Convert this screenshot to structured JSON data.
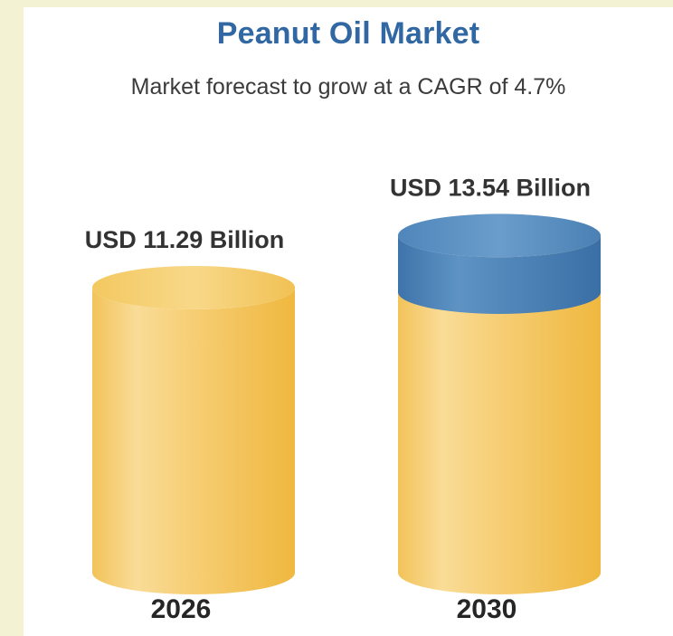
{
  "title": "Peanut Oil Market",
  "subtitle": "Market forecast to grow at a CAGR of 4.7%",
  "colors": {
    "background": "#f3f2d3",
    "title": "#3168a4",
    "cylinder_body": "#f4c55c",
    "cylinder_top": "#f5cd6e",
    "growth_segment": "#4a80b4"
  },
  "chart_data": {
    "type": "bar",
    "style": "3d-cylinder",
    "title": "Peanut Oil Market",
    "subtitle": "Market forecast to grow at a CAGR of 4.7%",
    "categories": [
      "2026",
      "2030"
    ],
    "values": [
      11.29,
      13.54
    ],
    "value_labels": [
      "USD 11.29 Billion",
      "USD 13.54 Billion"
    ],
    "unit": "USD Billion",
    "highlight": {
      "category": "2030",
      "segment": "growth above 2026 value",
      "color": "#4a80b4"
    }
  }
}
